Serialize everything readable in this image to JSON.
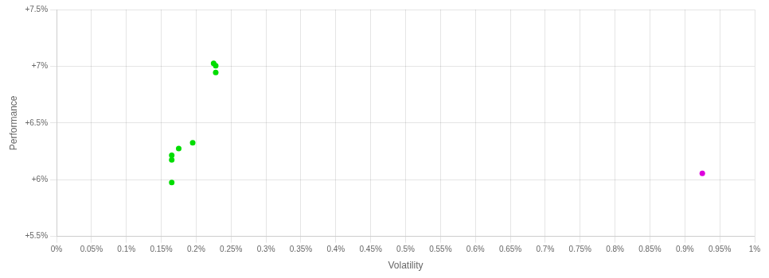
{
  "chart_data": {
    "type": "scatter",
    "xlabel": "Volatility",
    "ylabel": "Performance",
    "xlim": [
      0.0,
      0.01
    ],
    "ylim": [
      0.055,
      0.075
    ],
    "xticks": [
      {
        "value": 0.0,
        "label": "0%"
      },
      {
        "value": 0.0005,
        "label": "0.05%"
      },
      {
        "value": 0.001,
        "label": "0.1%"
      },
      {
        "value": 0.0015,
        "label": "0.15%"
      },
      {
        "value": 0.002,
        "label": "0.2%"
      },
      {
        "value": 0.0025,
        "label": "0.25%"
      },
      {
        "value": 0.003,
        "label": "0.3%"
      },
      {
        "value": 0.0035,
        "label": "0.35%"
      },
      {
        "value": 0.004,
        "label": "0.4%"
      },
      {
        "value": 0.0045,
        "label": "0.45%"
      },
      {
        "value": 0.005,
        "label": "0.5%"
      },
      {
        "value": 0.0055,
        "label": "0.55%"
      },
      {
        "value": 0.006,
        "label": "0.6%"
      },
      {
        "value": 0.0065,
        "label": "0.65%"
      },
      {
        "value": 0.007,
        "label": "0.7%"
      },
      {
        "value": 0.0075,
        "label": "0.75%"
      },
      {
        "value": 0.008,
        "label": "0.8%"
      },
      {
        "value": 0.0085,
        "label": "0.85%"
      },
      {
        "value": 0.009,
        "label": "0.9%"
      },
      {
        "value": 0.0095,
        "label": "0.95%"
      },
      {
        "value": 0.01,
        "label": "1%"
      }
    ],
    "yticks": [
      {
        "value": 0.055,
        "label": "+5.5%"
      },
      {
        "value": 0.06,
        "label": "+6%"
      },
      {
        "value": 0.065,
        "label": "+6.5%"
      },
      {
        "value": 0.07,
        "label": "+7%"
      },
      {
        "value": 0.075,
        "label": "+7.5%"
      }
    ],
    "grid": true,
    "series": [
      {
        "color": "#00dd00",
        "x": [
          0.00225,
          0.00228,
          0.00228,
          0.00195,
          0.00175,
          0.00165,
          0.00165,
          0.00165
        ],
        "values": [
          0.07025,
          0.07005,
          0.06945,
          0.06325,
          0.06275,
          0.06215,
          0.06175,
          0.05975
        ]
      },
      {
        "color": "#dd00dd",
        "x": [
          0.00925
        ],
        "values": [
          0.06055
        ]
      }
    ]
  }
}
